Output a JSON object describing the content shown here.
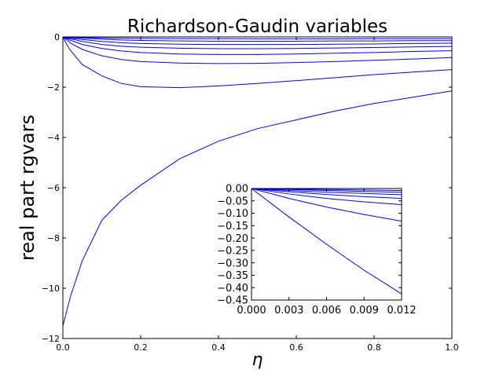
{
  "chart_data": [
    {
      "type": "line",
      "title": "Richardson-Gaudin variables",
      "x_label": "η",
      "y_label": "real part rgvars",
      "x": [
        0,
        0.01,
        0.02,
        0.05,
        0.1,
        0.15,
        0.2,
        0.3,
        0.4,
        0.5,
        0.6,
        0.7,
        0.8,
        0.9,
        1.0
      ],
      "series": [
        {
          "color": "#0000ff",
          "values": [
            -11.5,
            -10.9,
            -10.3,
            -8.9,
            -7.3,
            -6.5,
            -5.9,
            -4.85,
            -4.15,
            -3.65,
            -3.3,
            -2.95,
            -2.65,
            -2.4,
            -2.15
          ]
        },
        {
          "color": "#0000ff",
          "values": [
            0,
            -0.3,
            -0.55,
            -1.1,
            -1.55,
            -1.85,
            -1.98,
            -2.02,
            -1.95,
            -1.85,
            -1.74,
            -1.62,
            -1.5,
            -1.4,
            -1.3
          ]
        },
        {
          "color": "#0000ff",
          "values": [
            0,
            -0.12,
            -0.25,
            -0.5,
            -0.75,
            -0.9,
            -0.98,
            -1.04,
            -1.06,
            -1.05,
            -1.02,
            -0.98,
            -0.93,
            -0.88,
            -0.82
          ]
        },
        {
          "color": "#0000ff",
          "values": [
            0,
            -0.07,
            -0.14,
            -0.3,
            -0.46,
            -0.56,
            -0.62,
            -0.68,
            -0.7,
            -0.7,
            -0.68,
            -0.65,
            -0.62,
            -0.58,
            -0.55
          ]
        },
        {
          "color": "#0000ff",
          "values": [
            0,
            -0.04,
            -0.08,
            -0.18,
            -0.3,
            -0.37,
            -0.41,
            -0.45,
            -0.47,
            -0.47,
            -0.46,
            -0.44,
            -0.42,
            -0.4,
            -0.38
          ]
        },
        {
          "color": "#0000ff",
          "values": [
            0,
            -0.02,
            -0.05,
            -0.1,
            -0.18,
            -0.23,
            -0.26,
            -0.29,
            -0.3,
            -0.3,
            -0.3,
            -0.29,
            -0.28,
            -0.26,
            -0.25
          ]
        },
        {
          "color": "#0000ff",
          "values": [
            0,
            -0.01,
            -0.02,
            -0.05,
            -0.09,
            -0.12,
            -0.14,
            -0.16,
            -0.17,
            -0.17,
            -0.17,
            -0.16,
            -0.16,
            -0.15,
            -0.15
          ]
        },
        {
          "color": "#0000ff",
          "values": [
            0,
            0,
            -0.01,
            -0.02,
            -0.04,
            -0.05,
            -0.06,
            -0.07,
            -0.07,
            -0.08,
            -0.08,
            -0.08,
            -0.07,
            -0.07,
            -0.07
          ]
        }
      ],
      "xlim": [
        0,
        1
      ],
      "ylim": [
        -12,
        0
      ],
      "xticks": [
        {
          "value": 0,
          "label": "0.0"
        },
        {
          "value": 0.2,
          "label": "0.2"
        },
        {
          "value": 0.4,
          "label": "0.4"
        },
        {
          "value": 0.6,
          "label": "0.6"
        },
        {
          "value": 0.8,
          "label": "0.8"
        },
        {
          "value": 1,
          "label": "1.0"
        }
      ],
      "yticks": [
        {
          "value": -12,
          "label": "−12"
        },
        {
          "value": -10,
          "label": "−10"
        },
        {
          "value": -8,
          "label": "−8"
        },
        {
          "value": -6,
          "label": "−6"
        },
        {
          "value": -4,
          "label": "−4"
        },
        {
          "value": -2,
          "label": "−2"
        },
        0
      ]
    },
    {
      "type": "line",
      "x": [
        0,
        0.003,
        0.006,
        0.009,
        0.012
      ],
      "series": [
        {
          "color": "#0000ff",
          "values": [
            0,
            -0.115,
            -0.225,
            -0.33,
            -0.425
          ]
        },
        {
          "color": "#0000ff",
          "values": [
            0,
            -0.04,
            -0.075,
            -0.105,
            -0.132
          ]
        },
        {
          "color": "#0000ff",
          "values": [
            0,
            -0.022,
            -0.04,
            -0.054,
            -0.065
          ]
        },
        {
          "color": "#0000ff",
          "values": [
            0,
            -0.013,
            -0.024,
            -0.033,
            -0.04
          ]
        },
        {
          "color": "#0000ff",
          "values": [
            0,
            -0.008,
            -0.015,
            -0.02,
            -0.025
          ]
        },
        {
          "color": "#0000ff",
          "values": [
            0,
            -0.004,
            -0.008,
            -0.012,
            -0.015
          ]
        },
        {
          "color": "#0000ff",
          "values": [
            0,
            -0.002,
            -0.004,
            -0.006,
            -0.008
          ]
        }
      ],
      "xlim": [
        0,
        0.012
      ],
      "ylim": [
        -0.45,
        0
      ],
      "xticks": [
        {
          "value": 0,
          "label": "0.000"
        },
        {
          "value": 0.003,
          "label": "0.003"
        },
        {
          "value": 0.006,
          "label": "0.006"
        },
        {
          "value": 0.009,
          "label": "0.009"
        },
        {
          "value": 0.012,
          "label": "0.012"
        }
      ],
      "yticks": [
        {
          "value": -0.45,
          "label": "−0.45"
        },
        {
          "value": -0.4,
          "label": "−0.40"
        },
        {
          "value": -0.35,
          "label": "−0.35"
        },
        {
          "value": -0.3,
          "label": "−0.30"
        },
        {
          "value": -0.25,
          "label": "−0.25"
        },
        {
          "value": -0.2,
          "label": "−0.20"
        },
        {
          "value": -0.15,
          "label": "−0.15"
        },
        {
          "value": -0.1,
          "label": "−0.10"
        },
        {
          "value": -0.05,
          "label": "−0.05"
        },
        {
          "value": 0,
          "label": "0.00"
        }
      ]
    }
  ]
}
